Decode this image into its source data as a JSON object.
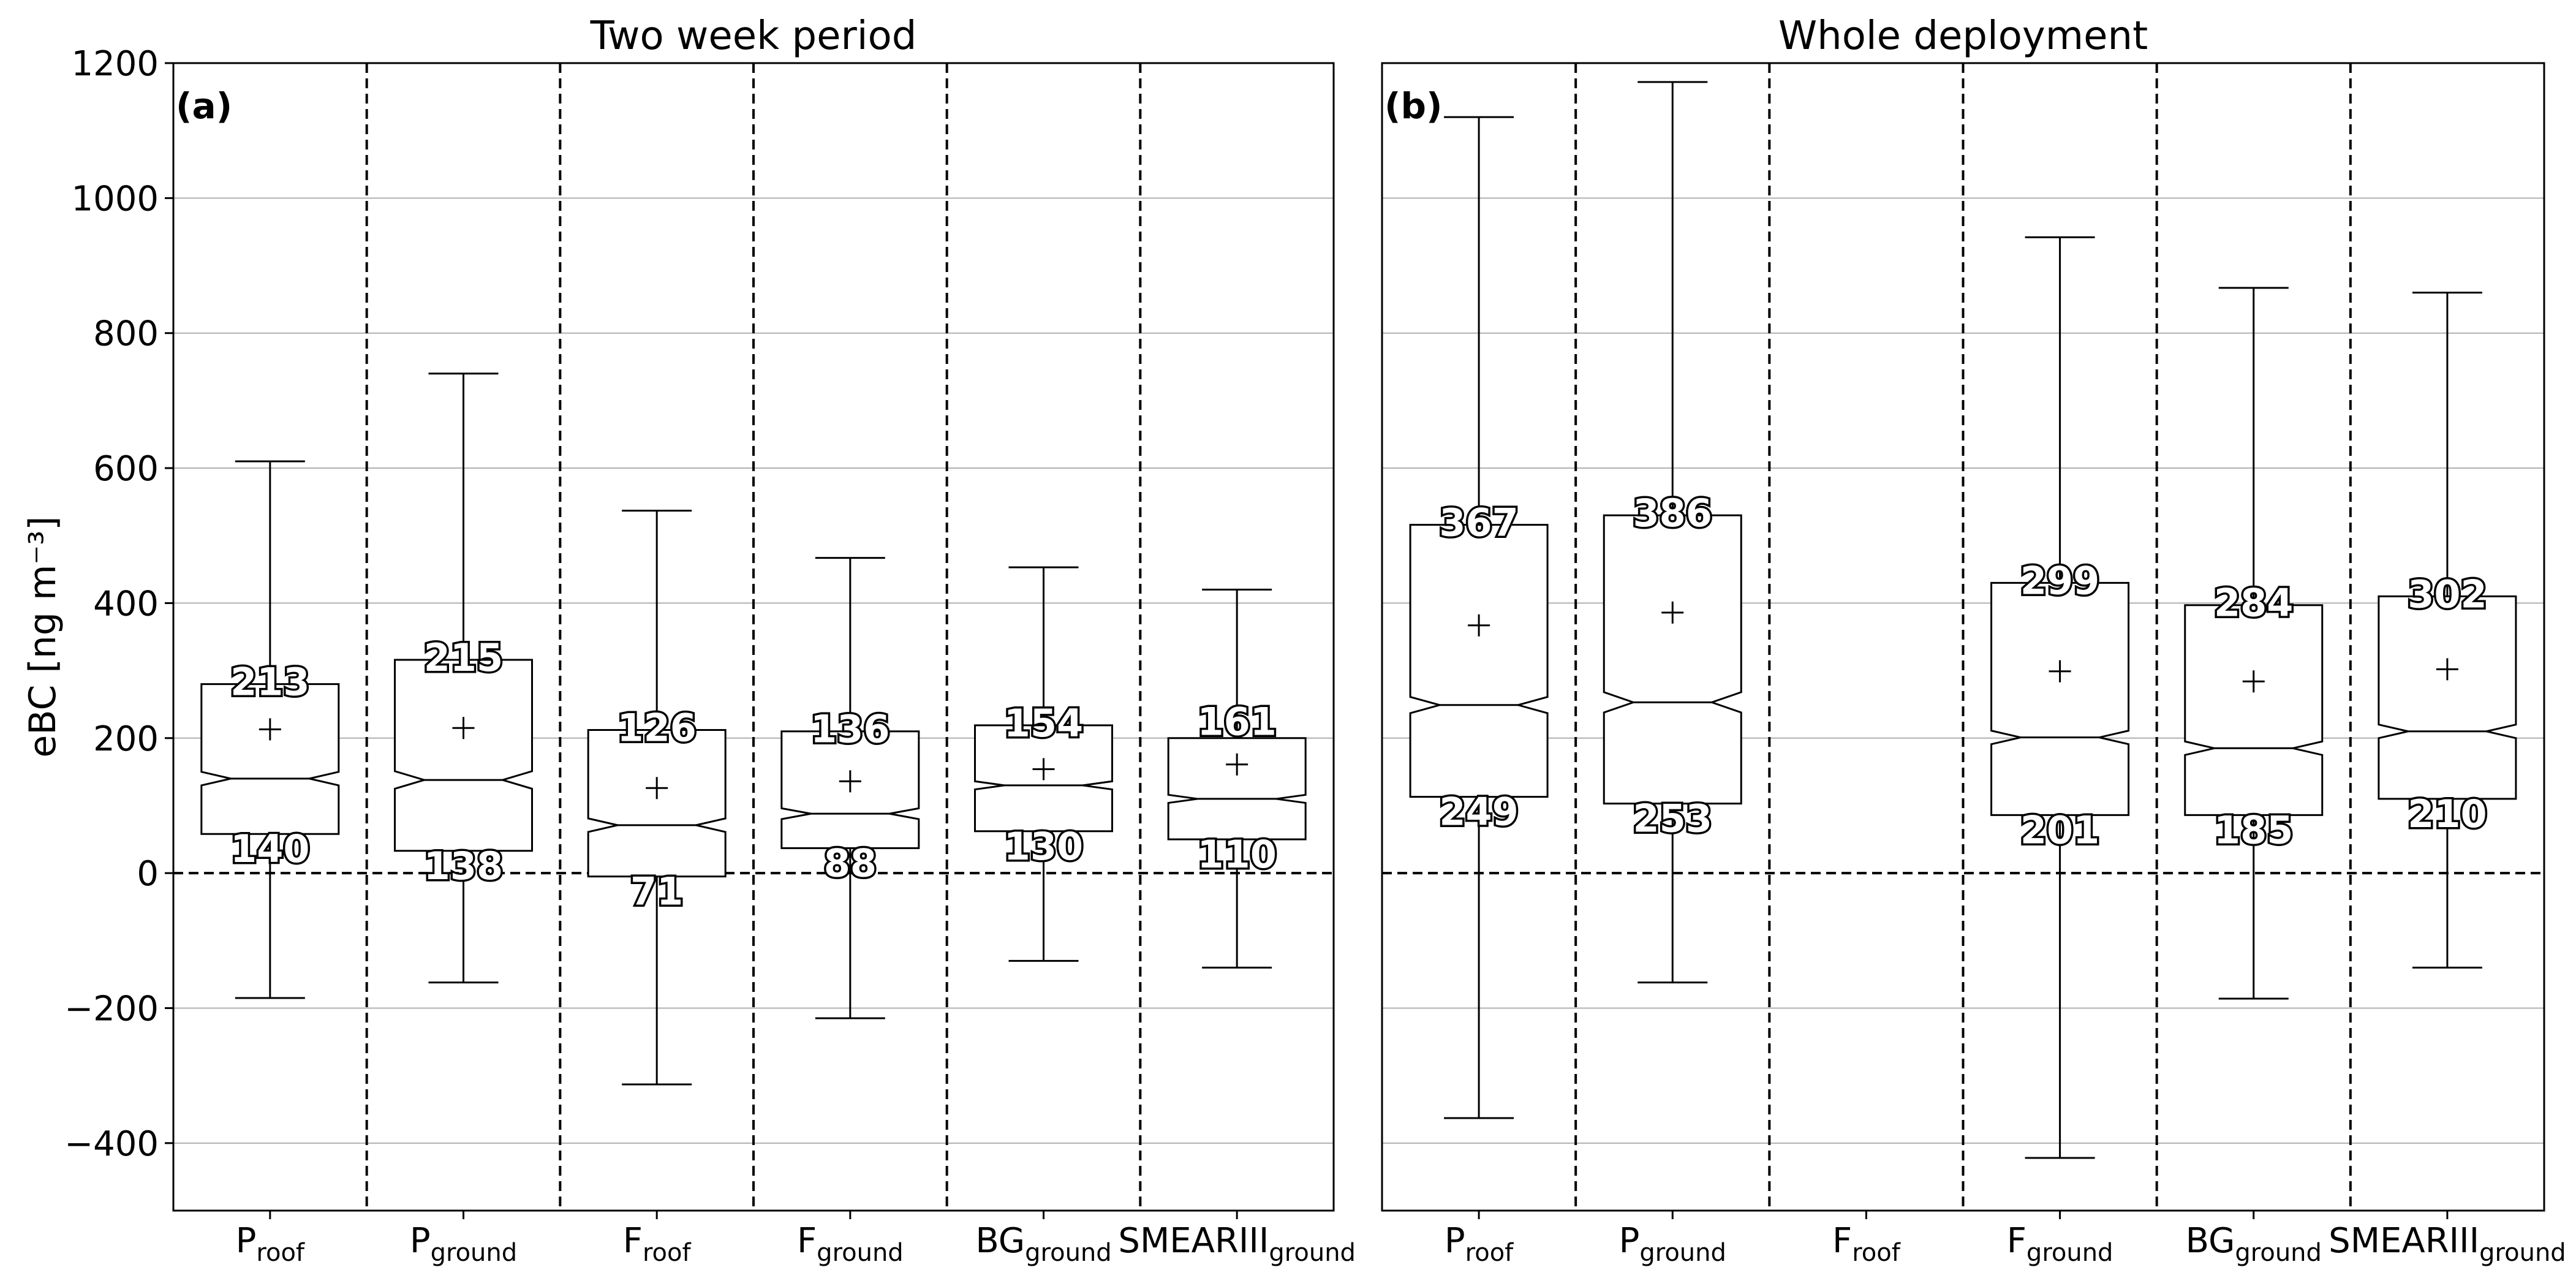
{
  "chart_data": [
    {
      "type": "box",
      "panel": "(a)",
      "title": "Two week period",
      "ylabel": "eBC [ng m⁻³]",
      "ylim": [
        -500,
        1200
      ],
      "yticks": [
        -400,
        -200,
        0,
        200,
        400,
        600,
        800,
        1000,
        1200
      ],
      "grid": "horizontal",
      "zero_line": "dashed",
      "categories": [
        {
          "main": "P",
          "sub": "roof"
        },
        {
          "main": "P",
          "sub": "ground"
        },
        {
          "main": "F",
          "sub": "roof"
        },
        {
          "main": "F",
          "sub": "ground"
        },
        {
          "main": "BG",
          "sub": "ground"
        },
        {
          "main": "SMEARIII",
          "sub": "ground"
        }
      ],
      "boxes": [
        {
          "whisker_low": -185,
          "q1": 58,
          "median": 140,
          "q3": 280,
          "whisker_high": 610,
          "mean": 213,
          "notch_low": 130,
          "notch_high": 150,
          "mean_label": "213",
          "median_label": "140"
        },
        {
          "whisker_low": -162,
          "q1": 33,
          "median": 138,
          "q3": 316,
          "whisker_high": 740,
          "mean": 215,
          "notch_low": 125,
          "notch_high": 151,
          "mean_label": "215",
          "median_label": "138"
        },
        {
          "whisker_low": -313,
          "q1": -5,
          "median": 71,
          "q3": 212,
          "whisker_high": 537,
          "mean": 126,
          "notch_low": 61,
          "notch_high": 81,
          "mean_label": "126",
          "median_label": "71"
        },
        {
          "whisker_low": -215,
          "q1": 37,
          "median": 88,
          "q3": 210,
          "whisker_high": 467,
          "mean": 136,
          "notch_low": 80,
          "notch_high": 96,
          "mean_label": "136",
          "median_label": "88"
        },
        {
          "whisker_low": -130,
          "q1": 62,
          "median": 130,
          "q3": 219,
          "whisker_high": 453,
          "mean": 154,
          "notch_low": 124,
          "notch_high": 136,
          "mean_label": "154",
          "median_label": "130"
        },
        {
          "whisker_low": -140,
          "q1": 50,
          "median": 110,
          "q3": 200,
          "whisker_high": 420,
          "mean": 161,
          "notch_low": 104,
          "notch_high": 116,
          "mean_label": "161",
          "median_label": "110"
        }
      ]
    },
    {
      "type": "box",
      "panel": "(b)",
      "title": "Whole deployment",
      "ylim": [
        -500,
        1200
      ],
      "grid": "horizontal",
      "zero_line": "dashed",
      "categories": [
        {
          "main": "P",
          "sub": "roof"
        },
        {
          "main": "P",
          "sub": "ground"
        },
        {
          "main": "F",
          "sub": "roof"
        },
        {
          "main": "F",
          "sub": "ground"
        },
        {
          "main": "BG",
          "sub": "ground"
        },
        {
          "main": "SMEARIII",
          "sub": "ground"
        }
      ],
      "boxes": [
        {
          "whisker_low": -363,
          "q1": 113,
          "median": 249,
          "q3": 516,
          "whisker_high": 1120,
          "mean": 367,
          "notch_low": 237,
          "notch_high": 261,
          "mean_label": "367",
          "median_label": "249"
        },
        {
          "whisker_low": -162,
          "q1": 103,
          "median": 253,
          "q3": 530,
          "whisker_high": 1172,
          "mean": 386,
          "notch_low": 238,
          "notch_high": 268,
          "mean_label": "386",
          "median_label": "253"
        },
        null,
        {
          "whisker_low": -422,
          "q1": 86,
          "median": 201,
          "q3": 430,
          "whisker_high": 942,
          "mean": 299,
          "notch_low": 191,
          "notch_high": 211,
          "mean_label": "299",
          "median_label": "201"
        },
        {
          "whisker_low": -186,
          "q1": 86,
          "median": 185,
          "q3": 397,
          "whisker_high": 867,
          "mean": 284,
          "notch_low": 175,
          "notch_high": 195,
          "mean_label": "284",
          "median_label": "185"
        },
        {
          "whisker_low": -140,
          "q1": 110,
          "median": 210,
          "q3": 410,
          "whisker_high": 860,
          "mean": 302,
          "notch_low": 200,
          "notch_high": 220,
          "mean_label": "302",
          "median_label": "210"
        }
      ]
    }
  ]
}
